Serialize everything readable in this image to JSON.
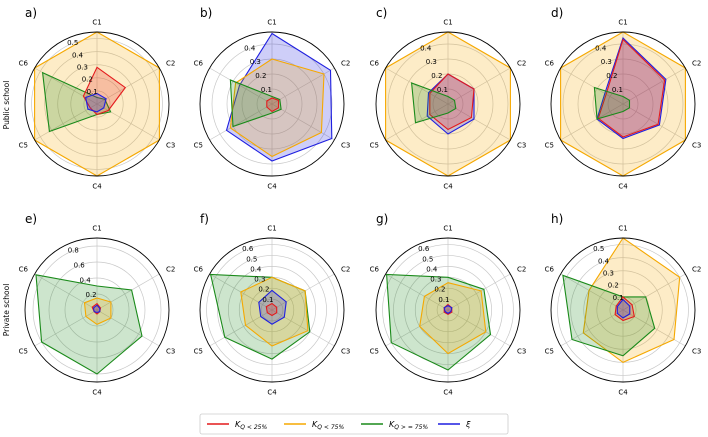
{
  "row_labels": [
    "Public school",
    "Private school"
  ],
  "legend": [
    {
      "key": "k25",
      "main": "K",
      "sub": "Q < 25%",
      "color": "#e41a1c"
    },
    {
      "key": "k75",
      "main": "K",
      "sub": "Q < 75%",
      "color": "#f5a800"
    },
    {
      "key": "kge75",
      "main": "K",
      "sub": "Q > = 75%",
      "color": "#1a8a1a"
    },
    {
      "key": "xi",
      "main": "ξ",
      "sub": "",
      "color": "#1f1fe0"
    }
  ],
  "chart_data": [
    {
      "type": "radar",
      "panel": "a)",
      "axes": [
        "C1",
        "C2",
        "C3",
        "C4",
        "C5",
        "C6"
      ],
      "rmax": 0.55,
      "ticks": [
        0.1,
        0.2,
        0.3,
        0.4,
        0.5
      ],
      "series": [
        {
          "key": "k75",
          "values": [
            0.55,
            0.55,
            0.55,
            0.55,
            0.55,
            0.55
          ]
        },
        {
          "key": "kge75",
          "values": [
            0.05,
            0.07,
            0.12,
            0.08,
            0.42,
            0.48
          ]
        },
        {
          "key": "k25",
          "values": [
            0.28,
            0.25,
            0.1,
            0.08,
            0.06,
            0.12
          ]
        },
        {
          "key": "xi",
          "values": [
            0.08,
            0.08,
            0.06,
            0.06,
            0.08,
            0.1
          ]
        }
      ]
    },
    {
      "type": "radar",
      "panel": "b)",
      "axes": [
        "C1",
        "C2",
        "C3",
        "C4",
        "C5",
        "C6"
      ],
      "rmax": 0.48,
      "ticks": [
        0.1,
        0.2,
        0.3,
        0.4
      ],
      "series": [
        {
          "key": "xi",
          "values": [
            0.47,
            0.45,
            0.46,
            0.38,
            0.35,
            0.25
          ]
        },
        {
          "key": "k75",
          "values": [
            0.3,
            0.4,
            0.38,
            0.35,
            0.32,
            0.28
          ]
        },
        {
          "key": "kge75",
          "values": [
            0.05,
            0.06,
            0.07,
            0.06,
            0.3,
            0.32
          ]
        },
        {
          "key": "k25",
          "values": [
            0.04,
            0.05,
            0.05,
            0.05,
            0.04,
            0.04
          ]
        }
      ]
    },
    {
      "type": "radar",
      "panel": "c)",
      "axes": [
        "C1",
        "C2",
        "C3",
        "C4",
        "C5",
        "C6"
      ],
      "rmax": 0.48,
      "ticks": [
        0.1,
        0.2,
        0.3,
        0.4
      ],
      "series": [
        {
          "key": "k75",
          "values": [
            0.48,
            0.48,
            0.48,
            0.48,
            0.48,
            0.48
          ]
        },
        {
          "key": "xi",
          "values": [
            0.2,
            0.2,
            0.2,
            0.2,
            0.16,
            0.15
          ]
        },
        {
          "key": "k25",
          "values": [
            0.2,
            0.2,
            0.18,
            0.17,
            0.14,
            0.14
          ]
        },
        {
          "key": "kge75",
          "values": [
            0.05,
            0.05,
            0.06,
            0.06,
            0.25,
            0.28
          ]
        }
      ]
    },
    {
      "type": "radar",
      "panel": "d)",
      "axes": [
        "C1",
        "C2",
        "C3",
        "C4",
        "C5",
        "C6"
      ],
      "rmax": 0.48,
      "ticks": [
        0.1,
        0.2,
        0.3,
        0.4
      ],
      "series": [
        {
          "key": "k75",
          "values": [
            0.48,
            0.48,
            0.48,
            0.48,
            0.48,
            0.48
          ]
        },
        {
          "key": "xi",
          "values": [
            0.44,
            0.33,
            0.28,
            0.23,
            0.2,
            0.14
          ]
        },
        {
          "key": "k25",
          "values": [
            0.43,
            0.32,
            0.27,
            0.22,
            0.19,
            0.13
          ]
        },
        {
          "key": "kge75",
          "values": [
            0.05,
            0.05,
            0.05,
            0.05,
            0.2,
            0.22
          ]
        }
      ]
    },
    {
      "type": "radar",
      "panel": "e)",
      "axes": [
        "C1",
        "C2",
        "C3",
        "C4",
        "C5",
        "C6"
      ],
      "rmax": 0.9,
      "ticks": [
        0.2,
        0.4,
        0.6,
        0.8
      ],
      "series": [
        {
          "key": "kge75",
          "values": [
            0.3,
            0.5,
            0.65,
            0.8,
            0.8,
            0.88
          ]
        },
        {
          "key": "k75",
          "values": [
            0.15,
            0.2,
            0.2,
            0.18,
            0.16,
            0.18
          ]
        },
        {
          "key": "k25",
          "values": [
            0.08,
            0.05,
            0.04,
            0.05,
            0.04,
            0.07
          ]
        },
        {
          "key": "xi",
          "values": [
            0.06,
            0.04,
            0.04,
            0.03,
            0.04,
            0.05
          ]
        }
      ]
    },
    {
      "type": "radar",
      "panel": "f)",
      "axes": [
        "C1",
        "C2",
        "C3",
        "C4",
        "C5",
        "C6"
      ],
      "rmax": 0.66,
      "ticks": [
        0.1,
        0.2,
        0.3,
        0.4,
        0.5,
        0.6
      ],
      "series": [
        {
          "key": "kge75",
          "values": [
            0.3,
            0.35,
            0.4,
            0.45,
            0.5,
            0.65
          ]
        },
        {
          "key": "k75",
          "values": [
            0.3,
            0.35,
            0.38,
            0.33,
            0.28,
            0.33
          ]
        },
        {
          "key": "xi",
          "values": [
            0.18,
            0.15,
            0.13,
            0.13,
            0.12,
            0.14
          ]
        },
        {
          "key": "k25",
          "values": [
            0.06,
            0.05,
            0.05,
            0.05,
            0.05,
            0.06
          ]
        }
      ]
    },
    {
      "type": "radar",
      "panel": "g)",
      "axes": [
        "C1",
        "C2",
        "C3",
        "C4",
        "C5",
        "C6"
      ],
      "rmax": 0.66,
      "ticks": [
        0.1,
        0.2,
        0.3,
        0.4,
        0.5,
        0.6
      ],
      "series": [
        {
          "key": "kge75",
          "values": [
            0.3,
            0.38,
            0.45,
            0.55,
            0.6,
            0.65
          ]
        },
        {
          "key": "k75",
          "values": [
            0.25,
            0.35,
            0.4,
            0.4,
            0.3,
            0.25
          ]
        },
        {
          "key": "k25",
          "values": [
            0.05,
            0.04,
            0.04,
            0.04,
            0.04,
            0.04
          ]
        },
        {
          "key": "xi",
          "values": [
            0.04,
            0.04,
            0.03,
            0.03,
            0.03,
            0.04
          ]
        }
      ]
    },
    {
      "type": "radar",
      "panel": "h)",
      "axes": [
        "C1",
        "C2",
        "C3",
        "C4",
        "C5",
        "C6"
      ],
      "rmax": 0.55,
      "ticks": [
        0.1,
        0.2,
        0.3,
        0.4,
        0.5
      ],
      "series": [
        {
          "key": "k75",
          "values": [
            0.55,
            0.5,
            0.45,
            0.4,
            0.35,
            0.3
          ]
        },
        {
          "key": "kge75",
          "values": [
            0.1,
            0.2,
            0.28,
            0.35,
            0.45,
            0.53
          ]
        },
        {
          "key": "k25",
          "values": [
            0.1,
            0.08,
            0.1,
            0.08,
            0.07,
            0.06
          ]
        },
        {
          "key": "xi",
          "values": [
            0.08,
            0.06,
            0.06,
            0.06,
            0.05,
            0.05
          ]
        }
      ]
    }
  ]
}
